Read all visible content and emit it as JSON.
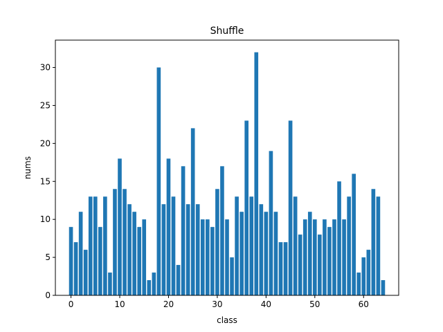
{
  "chart_data": {
    "type": "bar",
    "title": "Shuffle",
    "xlabel": "class",
    "ylabel": "nums",
    "x": [
      0,
      1,
      2,
      3,
      4,
      5,
      6,
      7,
      8,
      9,
      10,
      11,
      12,
      13,
      14,
      15,
      16,
      17,
      18,
      19,
      20,
      21,
      22,
      23,
      24,
      25,
      26,
      27,
      28,
      29,
      30,
      31,
      32,
      33,
      34,
      35,
      36,
      37,
      38,
      39,
      40,
      41,
      42,
      43,
      44,
      45,
      46,
      47,
      48,
      49,
      50,
      51,
      52,
      53,
      54,
      55,
      56,
      57,
      58,
      59,
      60,
      61,
      62,
      63,
      64
    ],
    "values": [
      9,
      7,
      11,
      6,
      13,
      13,
      9,
      13,
      3,
      14,
      18,
      14,
      12,
      11,
      9,
      10,
      2,
      3,
      30,
      12,
      18,
      13,
      4,
      17,
      12,
      22,
      12,
      10,
      10,
      9,
      14,
      17,
      10,
      5,
      13,
      11,
      23,
      13,
      32,
      12,
      11,
      19,
      11,
      7,
      7,
      23,
      13,
      8,
      10,
      11,
      10,
      8,
      10,
      9,
      10,
      15,
      10,
      13,
      16,
      3,
      5,
      6,
      14,
      13,
      2
    ],
    "xlim": [
      -3.2,
      67.2
    ],
    "ylim": [
      0,
      33.6
    ],
    "xticks": [
      0,
      10,
      20,
      30,
      40,
      50,
      60
    ],
    "yticks": [
      0,
      5,
      10,
      15,
      20,
      25,
      30
    ],
    "bar_color": "#1f77b4",
    "grid": false,
    "legend": "none"
  }
}
